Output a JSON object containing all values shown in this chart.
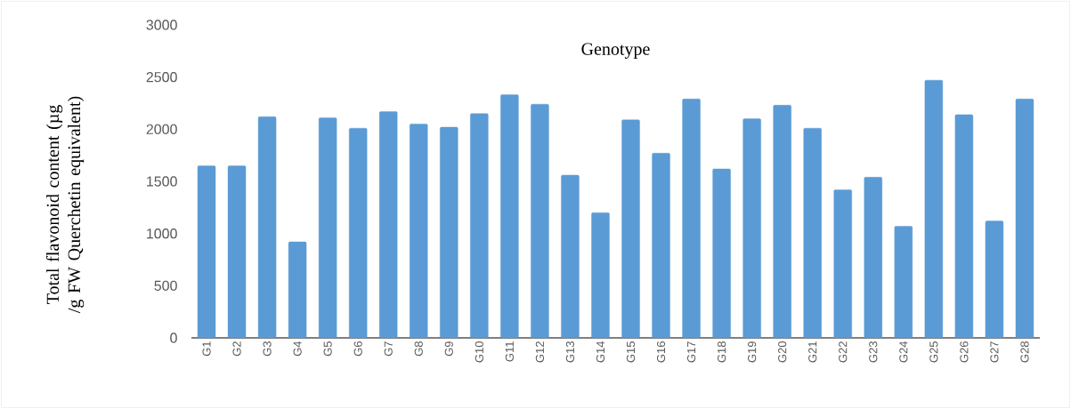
{
  "chart_data": {
    "type": "bar",
    "title": "Genotype",
    "ylabel": "Total flavonoid content (µg /g FW Querchetin equivalent)",
    "categories": [
      "G1",
      "G2",
      "G3",
      "G4",
      "G5",
      "G6",
      "G7",
      "G8",
      "G9",
      "G10",
      "G11",
      "G12",
      "G13",
      "G14",
      "G15",
      "G16",
      "G17",
      "G18",
      "G19",
      "G20",
      "G21",
      "G22",
      "G23",
      "G24",
      "G25",
      "G26",
      "G27",
      "G28"
    ],
    "values": [
      1650,
      1650,
      2120,
      920,
      2110,
      2010,
      2170,
      2050,
      2020,
      2150,
      2330,
      2240,
      1560,
      1200,
      2090,
      1770,
      2290,
      1620,
      2100,
      2230,
      2010,
      1420,
      1540,
      1070,
      2470,
      2140,
      1120,
      2290
    ],
    "color": "#5b9bd5",
    "ylim": [
      0,
      3000
    ],
    "yticks": [
      0,
      500,
      1000,
      1500,
      2000,
      2500,
      3000
    ]
  }
}
